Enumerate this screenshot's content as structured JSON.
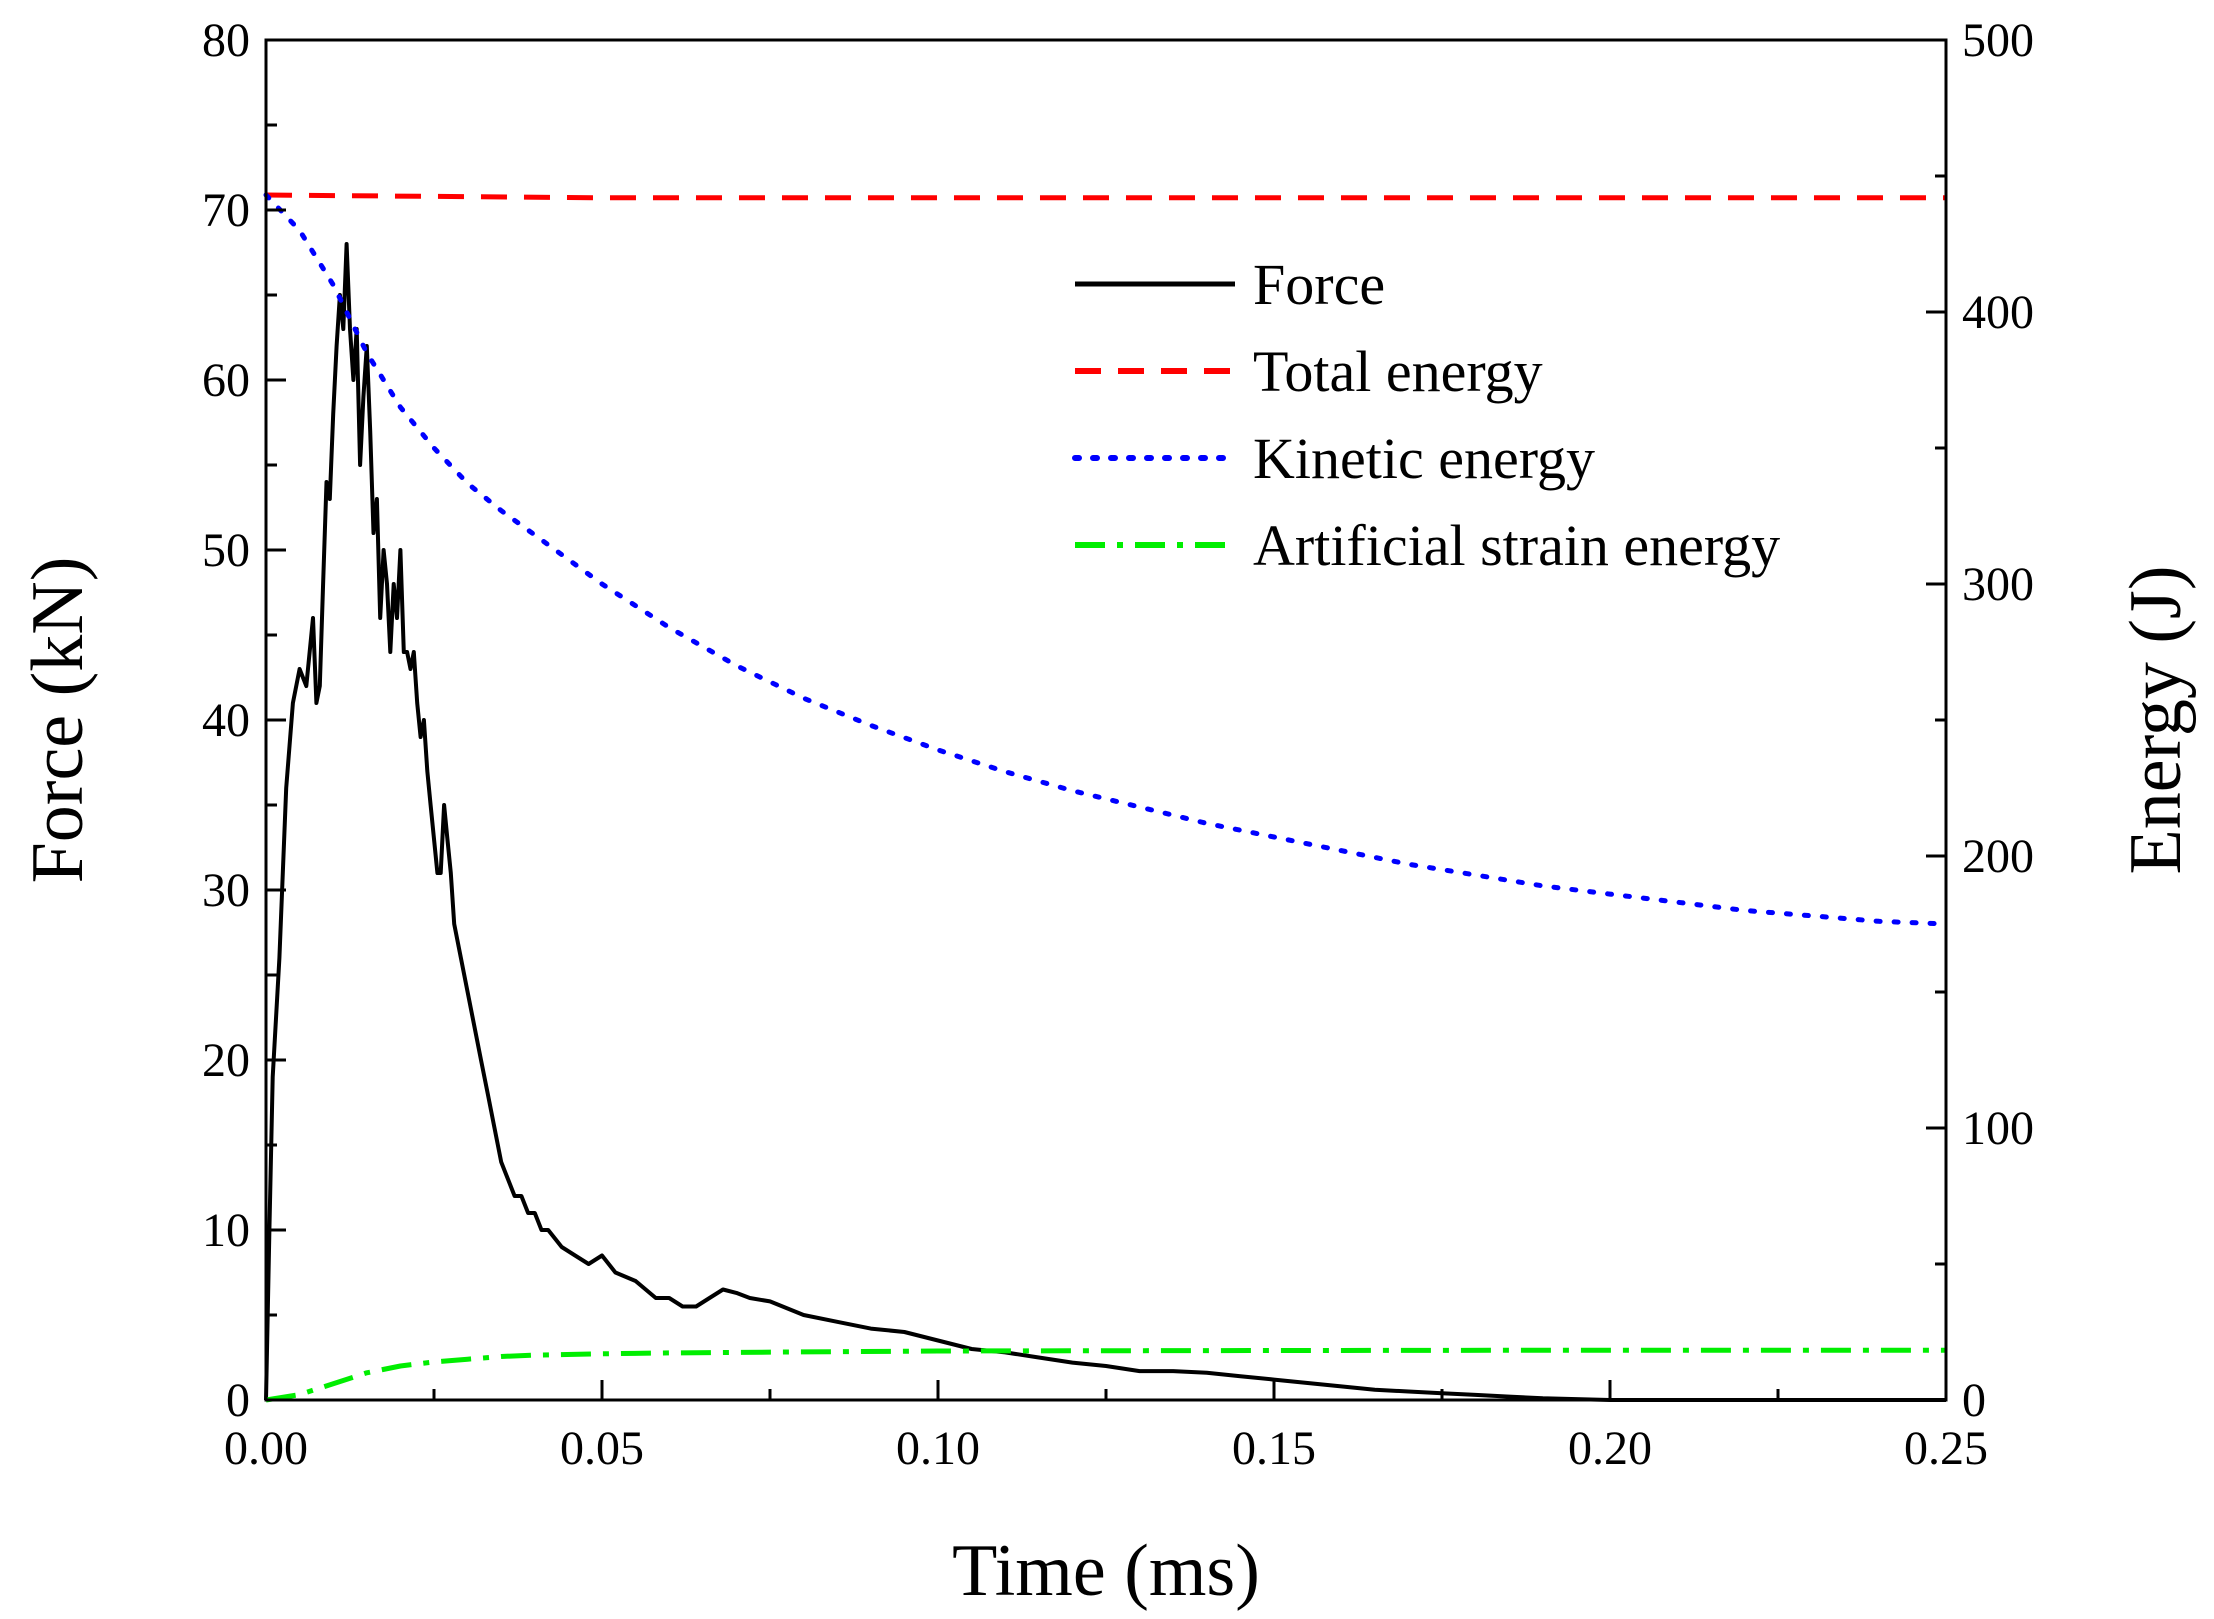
{
  "chart_data": {
    "type": "line",
    "title": "",
    "xlabel": "Time (ms)",
    "ylabel_left": "Force (kN)",
    "ylabel_right": "Energy (J)",
    "xlim": [
      0,
      0.25
    ],
    "ylim_left": [
      0,
      80
    ],
    "ylim_right": [
      0,
      500
    ],
    "x_ticks": [
      "0.00",
      "0.05",
      "0.10",
      "0.15",
      "0.20",
      "0.25"
    ],
    "y_left_ticks": [
      "0",
      "10",
      "20",
      "30",
      "40",
      "50",
      "60",
      "70",
      "80"
    ],
    "y_right_ticks": [
      "0",
      "100",
      "200",
      "300",
      "400",
      "500"
    ],
    "grid": false,
    "legend_position": "top-right",
    "series": [
      {
        "name": "Force",
        "axis": "left",
        "color": "#000000",
        "style": "solid",
        "x": [
          0,
          0.0005,
          0.001,
          0.002,
          0.003,
          0.004,
          0.005,
          0.006,
          0.007,
          0.0075,
          0.008,
          0.0085,
          0.009,
          0.0095,
          0.01,
          0.0105,
          0.011,
          0.0115,
          0.012,
          0.0125,
          0.013,
          0.0135,
          0.014,
          0.0145,
          0.015,
          0.0155,
          0.016,
          0.0165,
          0.017,
          0.0175,
          0.018,
          0.0185,
          0.019,
          0.0195,
          0.02,
          0.0205,
          0.021,
          0.0215,
          0.022,
          0.0225,
          0.023,
          0.0235,
          0.024,
          0.0245,
          0.025,
          0.0255,
          0.026,
          0.0265,
          0.027,
          0.0275,
          0.028,
          0.029,
          0.03,
          0.031,
          0.032,
          0.033,
          0.034,
          0.035,
          0.036,
          0.037,
          0.038,
          0.039,
          0.04,
          0.041,
          0.042,
          0.044,
          0.046,
          0.048,
          0.05,
          0.052,
          0.055,
          0.058,
          0.06,
          0.062,
          0.064,
          0.066,
          0.068,
          0.07,
          0.072,
          0.075,
          0.08,
          0.085,
          0.09,
          0.095,
          0.1,
          0.105,
          0.11,
          0.115,
          0.12,
          0.125,
          0.13,
          0.135,
          0.14,
          0.145,
          0.15,
          0.155,
          0.16,
          0.165,
          0.17,
          0.175,
          0.18,
          0.185,
          0.19,
          0.2,
          0.21,
          0.22,
          0.23,
          0.24,
          0.25
        ],
        "values": [
          0,
          10,
          19,
          26,
          36,
          41,
          43,
          42,
          46,
          41,
          42,
          48,
          54,
          53,
          58,
          62,
          65,
          63,
          68,
          63,
          60,
          63,
          55,
          59,
          62,
          57,
          51,
          53,
          46,
          50,
          48,
          44,
          48,
          46,
          50,
          44,
          44,
          43,
          44,
          41,
          39,
          40,
          37,
          35,
          33,
          31,
          31,
          35,
          33,
          31,
          28,
          26,
          24,
          22,
          20,
          18,
          16,
          14,
          13,
          12,
          12,
          11,
          11,
          10,
          10,
          9,
          8.5,
          8,
          8.5,
          7.5,
          7,
          6,
          6,
          5.5,
          5.5,
          6,
          6.5,
          6.3,
          6,
          5.8,
          5,
          4.6,
          4.2,
          4,
          3.5,
          3,
          2.8,
          2.5,
          2.2,
          2,
          1.7,
          1.7,
          1.6,
          1.4,
          1.2,
          1.0,
          0.8,
          0.6,
          0.5,
          0.4,
          0.3,
          0.2,
          0.1,
          0,
          0,
          0,
          0,
          0,
          0
        ]
      },
      {
        "name": "Total energy",
        "axis": "right",
        "color": "#ff0000",
        "style": "dash",
        "x": [
          0,
          0.05,
          0.1,
          0.15,
          0.2,
          0.25
        ],
        "values": [
          443,
          442,
          442,
          442,
          442,
          442
        ]
      },
      {
        "name": "Kinetic energy",
        "axis": "right",
        "color": "#0000ff",
        "style": "dot",
        "x": [
          0,
          0.005,
          0.01,
          0.015,
          0.02,
          0.025,
          0.03,
          0.035,
          0.04,
          0.05,
          0.06,
          0.07,
          0.08,
          0.09,
          0.1,
          0.11,
          0.12,
          0.13,
          0.14,
          0.15,
          0.16,
          0.17,
          0.18,
          0.19,
          0.2,
          0.21,
          0.22,
          0.23,
          0.24,
          0.25
        ],
        "values": [
          443,
          430,
          410,
          385,
          365,
          350,
          337,
          327,
          318,
          300,
          284,
          270,
          258,
          248,
          239,
          231,
          224,
          218,
          212,
          207,
          202,
          197,
          193,
          189,
          186,
          183,
          180,
          178,
          176,
          175
        ]
      },
      {
        "name": "Artificial strain energy",
        "axis": "right",
        "color": "#00ee00",
        "style": "dashdot",
        "x": [
          0,
          0.005,
          0.01,
          0.015,
          0.02,
          0.025,
          0.03,
          0.035,
          0.04,
          0.05,
          0.06,
          0.08,
          0.1,
          0.15,
          0.2,
          0.25
        ],
        "values": [
          0,
          2,
          6,
          10,
          12.5,
          14,
          15,
          16,
          16.5,
          17,
          17.3,
          17.7,
          18,
          18.2,
          18.3,
          18.3
        ]
      }
    ]
  }
}
